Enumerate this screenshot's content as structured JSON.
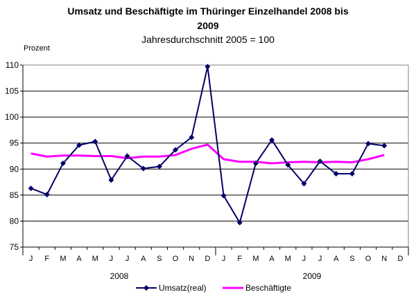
{
  "chart_data": {
    "type": "line",
    "title_line1": "Umsatz und Beschäftigte im Thüringer Einzelhandel 2008 bis",
    "title_line2": "2009",
    "subtitle": "Jahresdurchschnitt 2005 = 100",
    "ylabel": "Prozent",
    "ylim": [
      75,
      110
    ],
    "yticks": [
      75,
      80,
      85,
      90,
      95,
      100,
      105,
      110
    ],
    "grid": true,
    "legend_position": "bottom",
    "categories": [
      "J",
      "F",
      "M",
      "A",
      "M",
      "J",
      "J",
      "A",
      "S",
      "O",
      "N",
      "D",
      "J",
      "F",
      "M",
      "A",
      "M",
      "J",
      "J",
      "A",
      "S",
      "O",
      "N",
      "D"
    ],
    "years": [
      "2008",
      "2009"
    ],
    "series": [
      {
        "name": "Umsatz(real)",
        "color": "#000066",
        "marker": "diamond",
        "values": [
          86.3,
          85.1,
          91.1,
          94.6,
          95.3,
          87.9,
          92.5,
          90.1,
          90.5,
          93.7,
          96.1,
          109.7,
          84.9,
          79.7,
          91.1,
          95.6,
          90.8,
          87.2,
          91.5,
          89.1,
          89.1,
          94.9,
          94.5,
          null
        ]
      },
      {
        "name": "Beschäftigte",
        "color": "#ff00ff",
        "marker": "none",
        "values": [
          93.0,
          92.4,
          92.6,
          92.6,
          92.5,
          92.5,
          92.1,
          92.4,
          92.4,
          92.7,
          93.9,
          94.7,
          91.9,
          91.4,
          91.4,
          91.1,
          91.3,
          91.4,
          91.3,
          91.4,
          91.3,
          91.9,
          92.7,
          null
        ]
      }
    ]
  }
}
